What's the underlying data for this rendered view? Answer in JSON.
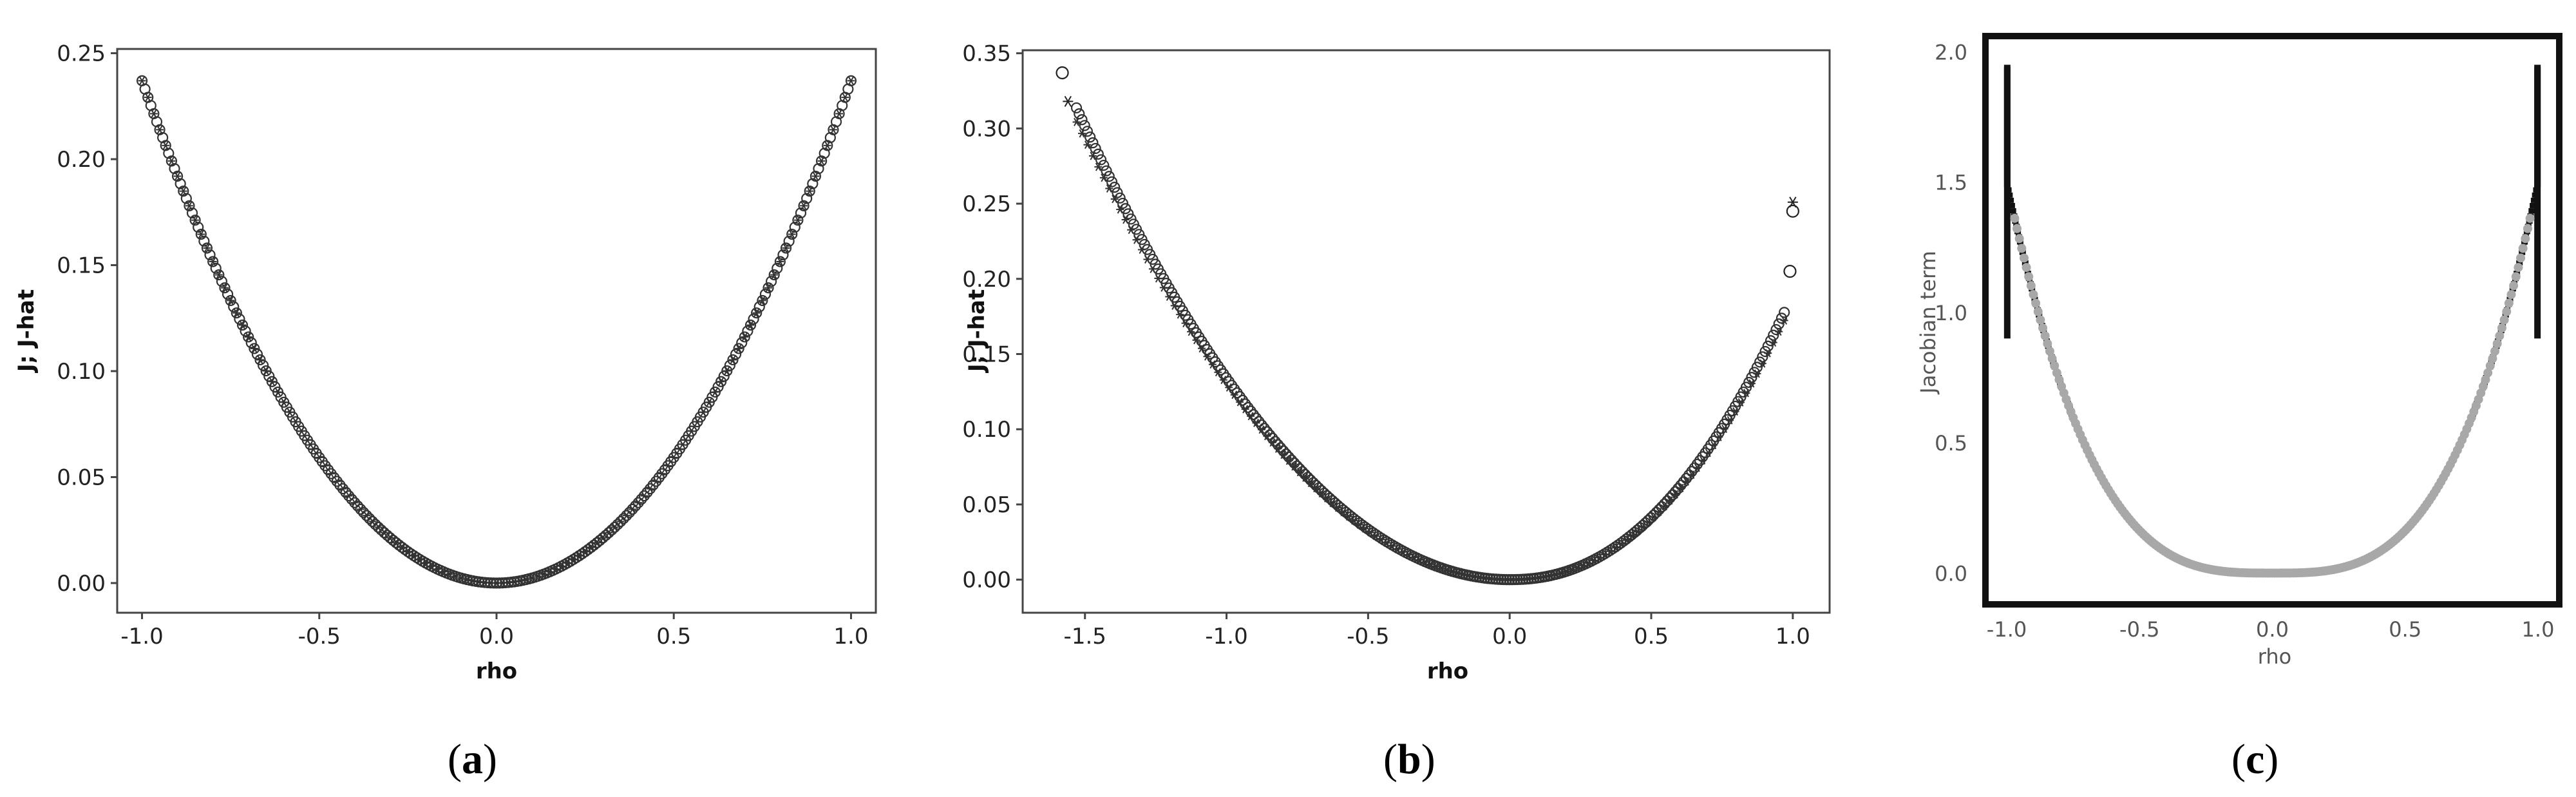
{
  "chart_data": [
    {
      "type": "scatter",
      "panel": "a",
      "caption_open": "(",
      "caption_letter": "a",
      "caption_close": ")",
      "xlabel": "rho",
      "ylabel": "J; J-hat",
      "xlim": [
        -1.07,
        1.07
      ],
      "ylim": [
        -0.014,
        0.252
      ],
      "xticks": [
        "-1.0",
        "-0.5",
        "0.0",
        "0.5",
        "1.0"
      ],
      "yticks": [
        "0.00",
        "0.05",
        "0.10",
        "0.15",
        "0.20",
        "0.25"
      ],
      "grid": false,
      "curve": "y = 0.237 * x^2",
      "x_range": [
        -1.0,
        1.0
      ],
      "series": [
        {
          "marker": "circle",
          "color": "#333333"
        },
        {
          "marker": "asterisk",
          "color": "#333333"
        }
      ]
    },
    {
      "type": "scatter",
      "panel": "b",
      "caption_open": "(",
      "caption_letter": "b",
      "caption_close": ")",
      "xlabel": "rho",
      "ylabel": "J; J-hat",
      "xlim": [
        -1.72,
        1.13
      ],
      "ylim": [
        -0.022,
        0.352
      ],
      "xticks": [
        "-1.5",
        "-1.0",
        "-0.5",
        "0.0",
        "0.5",
        "1.0"
      ],
      "yticks": [
        "0.00",
        "0.05",
        "0.10",
        "0.15",
        "0.20",
        "0.25",
        "0.30",
        "0.35"
      ],
      "grid": false,
      "curve": "y = 0.134 * x^2 (x<0), 0.245 * x^2 (x>0)",
      "x_range": [
        -1.58,
        1.0
      ],
      "outliers": [
        {
          "x": -1.58,
          "y": 0.337,
          "marker": "circle"
        },
        {
          "x": -1.56,
          "y": 0.318,
          "marker": "asterisk"
        },
        {
          "x": 1.0,
          "y": 0.251,
          "marker": "asterisk"
        },
        {
          "x": 1.0,
          "y": 0.245,
          "marker": "circle"
        },
        {
          "x": 0.99,
          "y": 0.205,
          "marker": "circle"
        }
      ],
      "series": [
        {
          "marker": "circle",
          "color": "#333333"
        },
        {
          "marker": "asterisk",
          "color": "#333333"
        }
      ]
    },
    {
      "type": "scatter",
      "panel": "c",
      "caption_open": "(",
      "caption_letter": "c",
      "caption_close": ")",
      "xlabel": "rho",
      "ylabel": "Jacobian term",
      "xlim": [
        -1.08,
        1.08
      ],
      "ylim": [
        -0.12,
        2.06
      ],
      "xticks": [
        "-1.0",
        "-0.5",
        "0.0",
        "0.5",
        "1.0"
      ],
      "yticks": [
        "0.0",
        "0.5",
        "1.0",
        "1.5",
        "2.0"
      ],
      "grid": false,
      "x_range": [
        -0.998,
        0.998
      ],
      "series": [
        {
          "marker": "dash",
          "color": "#111111"
        },
        {
          "marker": "dot",
          "color": "#a8a8a8"
        }
      ]
    }
  ]
}
